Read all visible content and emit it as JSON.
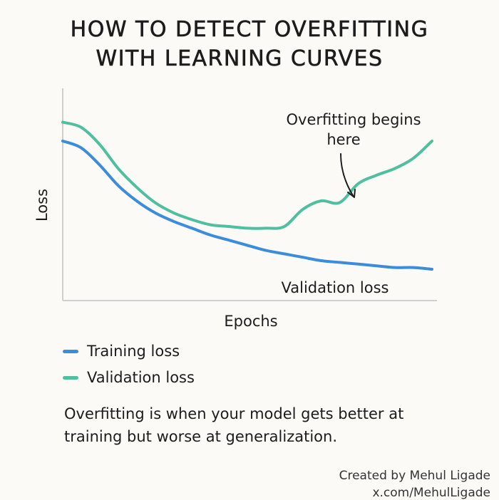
{
  "title_lines": [
    "HOW TO DETECT OVERFITTING",
    "WITH LEARNING CURVES"
  ],
  "chart_data": {
    "type": "line",
    "title": "HOW TO DETECT OVERFITTING WITH LEARNING CURVES",
    "xlabel": "Epochs",
    "ylabel": "Loss",
    "x": [
      0,
      5,
      10,
      15,
      20,
      25,
      30,
      35,
      40,
      45,
      50,
      55,
      60,
      65,
      70,
      75,
      80,
      85,
      90,
      95,
      100
    ],
    "series": [
      {
        "name": "Training loss",
        "color": "#3b8ddb",
        "values": [
          0.8,
          0.76,
          0.66,
          0.54,
          0.45,
          0.38,
          0.33,
          0.29,
          0.25,
          0.22,
          0.19,
          0.16,
          0.14,
          0.12,
          0.1,
          0.09,
          0.08,
          0.07,
          0.06,
          0.06,
          0.05
        ]
      },
      {
        "name": "Validation loss",
        "color": "#4fbf9f",
        "values": [
          0.91,
          0.88,
          0.78,
          0.64,
          0.53,
          0.44,
          0.38,
          0.34,
          0.31,
          0.3,
          0.29,
          0.29,
          0.3,
          0.4,
          0.45,
          0.44,
          0.55,
          0.6,
          0.64,
          0.7,
          0.8
        ]
      }
    ],
    "annotations": [
      {
        "text_lines": [
          "Overfitting begins",
          "here"
        ],
        "points_to": {
          "series": "Validation loss",
          "x": 79
        }
      },
      {
        "text": "Validation loss",
        "near": {
          "series": "Training loss",
          "x": 88
        }
      }
    ],
    "axes": {
      "x_ticks": false,
      "y_ticks": false,
      "grid": false
    },
    "legend": {
      "position": "bottom-left"
    }
  },
  "caption": [
    "Overfitting is when your model gets better at",
    "training but worse at generalization."
  ],
  "credit": [
    "Created by Mehul Ligade",
    "x.com/MehulLigade"
  ]
}
